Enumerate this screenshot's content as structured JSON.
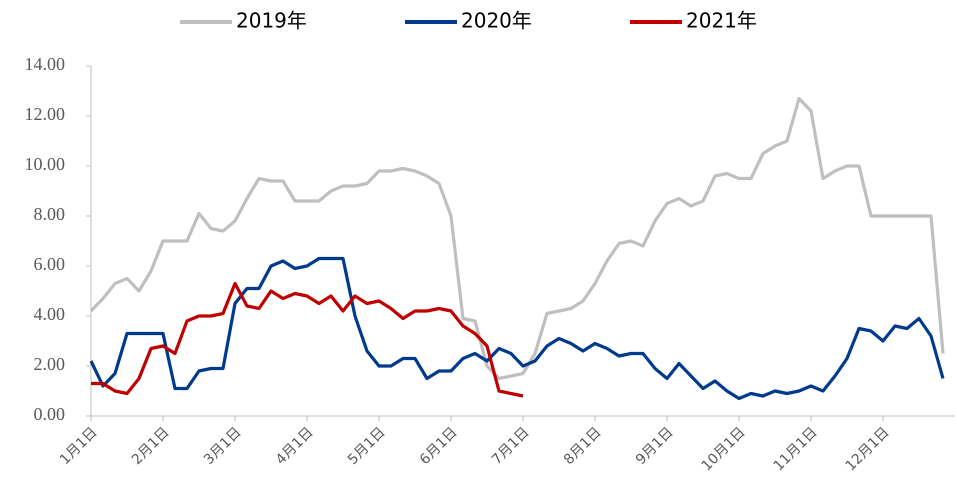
{
  "chart_data": {
    "type": "line",
    "categories": [
      "1月1日",
      null,
      null,
      null,
      null,
      null,
      "2月1日",
      null,
      null,
      null,
      null,
      null,
      "3月1日",
      null,
      null,
      null,
      null,
      null,
      "4月1日",
      null,
      null,
      null,
      null,
      null,
      "5月1日",
      null,
      null,
      null,
      null,
      null,
      "6月1日",
      null,
      null,
      null,
      null,
      null,
      "7月1日",
      null,
      null,
      null,
      null,
      null,
      "8月1日",
      null,
      null,
      null,
      null,
      null,
      "9月1日",
      null,
      null,
      null,
      null,
      null,
      "10月1日",
      null,
      null,
      null,
      null,
      null,
      "11月1日",
      null,
      null,
      null,
      null,
      null,
      "12月1日",
      null,
      null,
      null,
      null,
      null
    ],
    "series": [
      {
        "name": "2019年",
        "color": "#bfbfbf",
        "values": [
          4.2,
          4.7,
          5.3,
          5.5,
          5.0,
          5.8,
          7.0,
          7.0,
          7.0,
          8.1,
          7.5,
          7.4,
          7.8,
          8.7,
          9.5,
          9.4,
          9.4,
          8.6,
          8.6,
          8.6,
          9.0,
          9.2,
          9.2,
          9.3,
          9.8,
          9.8,
          9.9,
          9.8,
          9.6,
          9.3,
          8.0,
          3.9,
          3.8,
          2.0,
          1.5,
          1.6,
          1.7,
          2.5,
          4.1,
          4.2,
          4.3,
          4.6,
          5.3,
          6.2,
          6.9,
          7.0,
          6.8,
          7.8,
          8.5,
          8.7,
          8.4,
          8.6,
          9.6,
          9.7,
          9.5,
          9.5,
          10.5,
          10.8,
          11.0,
          12.7,
          12.2,
          9.5,
          9.8,
          10.0,
          10.0,
          8.0,
          8.0,
          8.0,
          8.0,
          8.0,
          8.0,
          2.5
        ]
      },
      {
        "name": "2020年",
        "color": "#003a8c",
        "values": [
          2.2,
          1.2,
          1.7,
          3.3,
          3.3,
          3.3,
          3.3,
          1.1,
          1.1,
          1.8,
          1.9,
          1.9,
          4.5,
          5.1,
          5.1,
          6.0,
          6.2,
          5.9,
          6.0,
          6.3,
          6.3,
          6.3,
          4.0,
          2.6,
          2.0,
          2.0,
          2.3,
          2.3,
          1.5,
          1.8,
          1.8,
          2.3,
          2.5,
          2.2,
          2.7,
          2.5,
          2.0,
          2.2,
          2.8,
          3.1,
          2.9,
          2.6,
          2.9,
          2.7,
          2.4,
          2.5,
          2.5,
          1.9,
          1.5,
          2.1,
          1.6,
          1.1,
          1.4,
          1.0,
          0.7,
          0.9,
          0.8,
          1.0,
          0.9,
          1.0,
          1.2,
          1.0,
          1.6,
          2.3,
          3.5,
          3.4,
          3.0,
          3.6,
          3.5,
          3.9,
          3.2,
          1.5
        ]
      },
      {
        "name": "2021年",
        "color": "#c00000",
        "values": [
          1.3,
          1.3,
          1.0,
          0.9,
          1.5,
          2.7,
          2.8,
          2.5,
          3.8,
          4.0,
          4.0,
          4.1,
          5.3,
          4.4,
          4.3,
          5.0,
          4.7,
          4.9,
          4.8,
          4.5,
          4.8,
          4.2,
          4.8,
          4.5,
          4.6,
          4.3,
          3.9,
          4.2,
          4.2,
          4.3,
          4.2,
          3.6,
          3.3,
          2.8,
          1.0,
          0.9,
          0.8,
          null,
          null,
          null,
          null,
          null,
          null,
          null,
          null,
          null,
          null,
          null,
          null,
          null,
          null,
          null,
          null,
          null,
          null,
          null,
          null,
          null,
          null,
          null,
          null,
          null,
          null,
          null,
          null,
          null,
          null,
          null,
          null,
          null,
          null,
          null
        ]
      }
    ],
    "ylim": [
      0,
      14
    ],
    "yticks": [
      {
        "value": 0,
        "label": "0.00"
      },
      {
        "value": 2,
        "label": "2.00"
      },
      {
        "value": 4,
        "label": "4.00"
      },
      {
        "value": 6,
        "label": "6.00"
      },
      {
        "value": 8,
        "label": "8.00"
      },
      {
        "value": 10,
        "label": "10.00"
      },
      {
        "value": 12,
        "label": "12.00"
      },
      {
        "value": 14,
        "label": "14.00"
      }
    ],
    "legend": "top"
  }
}
